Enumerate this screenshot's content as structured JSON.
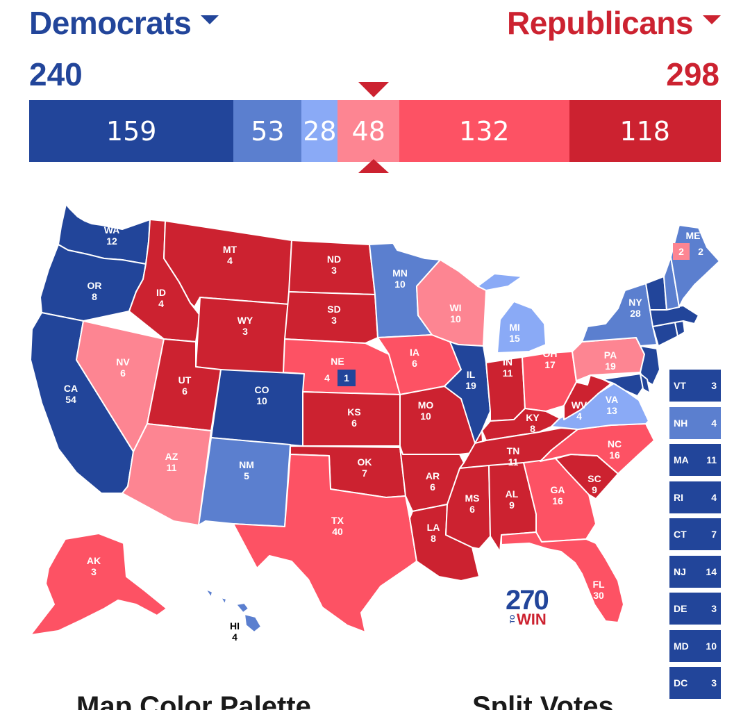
{
  "header": {
    "dem_name": "Democrats",
    "rep_name": "Republicans",
    "dem_total": "240",
    "rep_total": "298"
  },
  "ev_bar": [
    {
      "label": "159",
      "value": 159,
      "color": "#22459a"
    },
    {
      "label": "53",
      "value": 53,
      "color": "#5b7fcf"
    },
    {
      "label": "28",
      "value": 28,
      "color": "#8aaaf6"
    },
    {
      "label": "48",
      "value": 48,
      "color": "#fd8592"
    },
    {
      "label": "132",
      "value": 132,
      "color": "#fd5264"
    },
    {
      "label": "118",
      "value": 118,
      "color": "#cc2230"
    }
  ],
  "colors": {
    "safe_dem": "#22459a",
    "likely_dem": "#5b7fcf",
    "lean_dem": "#8aaaf6",
    "tilt_rep": "#fd8592",
    "likely_rep": "#fd5264",
    "safe_rep": "#cc2230"
  },
  "states": {
    "WA": {
      "abbr": "WA",
      "ev": "12",
      "rating": "safe_dem"
    },
    "OR": {
      "abbr": "OR",
      "ev": "8",
      "rating": "safe_dem"
    },
    "CA": {
      "abbr": "CA",
      "ev": "54",
      "rating": "safe_dem"
    },
    "NV": {
      "abbr": "NV",
      "ev": "6",
      "rating": "tilt_rep"
    },
    "ID": {
      "abbr": "ID",
      "ev": "4",
      "rating": "safe_rep"
    },
    "MT": {
      "abbr": "MT",
      "ev": "4",
      "rating": "safe_rep"
    },
    "WY": {
      "abbr": "WY",
      "ev": "3",
      "rating": "safe_rep"
    },
    "UT": {
      "abbr": "UT",
      "ev": "6",
      "rating": "safe_rep"
    },
    "AZ": {
      "abbr": "AZ",
      "ev": "11",
      "rating": "tilt_rep"
    },
    "CO": {
      "abbr": "CO",
      "ev": "10",
      "rating": "safe_dem"
    },
    "NM": {
      "abbr": "NM",
      "ev": "5",
      "rating": "likely_dem"
    },
    "ND": {
      "abbr": "ND",
      "ev": "3",
      "rating": "safe_rep"
    },
    "SD": {
      "abbr": "SD",
      "ev": "3",
      "rating": "safe_rep"
    },
    "NE": {
      "abbr": "NE",
      "ev": "4",
      "rating": "likely_rep",
      "district_ev": "1"
    },
    "KS": {
      "abbr": "KS",
      "ev": "6",
      "rating": "safe_rep"
    },
    "OK": {
      "abbr": "OK",
      "ev": "7",
      "rating": "safe_rep"
    },
    "TX": {
      "abbr": "TX",
      "ev": "40",
      "rating": "likely_rep"
    },
    "MN": {
      "abbr": "MN",
      "ev": "10",
      "rating": "likely_dem"
    },
    "IA": {
      "abbr": "IA",
      "ev": "6",
      "rating": "likely_rep"
    },
    "MO": {
      "abbr": "MO",
      "ev": "10",
      "rating": "safe_rep"
    },
    "AR": {
      "abbr": "AR",
      "ev": "6",
      "rating": "safe_rep"
    },
    "LA": {
      "abbr": "LA",
      "ev": "8",
      "rating": "safe_rep"
    },
    "WI": {
      "abbr": "WI",
      "ev": "10",
      "rating": "tilt_rep"
    },
    "IL": {
      "abbr": "IL",
      "ev": "19",
      "rating": "safe_dem"
    },
    "MI": {
      "abbr": "MI",
      "ev": "15",
      "rating": "lean_dem"
    },
    "IN": {
      "abbr": "IN",
      "ev": "11",
      "rating": "safe_rep"
    },
    "OH": {
      "abbr": "OH",
      "ev": "17",
      "rating": "likely_rep"
    },
    "KY": {
      "abbr": "KY",
      "ev": "8",
      "rating": "safe_rep"
    },
    "TN": {
      "abbr": "TN",
      "ev": "11",
      "rating": "safe_rep"
    },
    "MS": {
      "abbr": "MS",
      "ev": "6",
      "rating": "safe_rep"
    },
    "AL": {
      "abbr": "AL",
      "ev": "9",
      "rating": "safe_rep"
    },
    "GA": {
      "abbr": "GA",
      "ev": "16",
      "rating": "likely_rep"
    },
    "FL": {
      "abbr": "FL",
      "ev": "30",
      "rating": "likely_rep"
    },
    "SC": {
      "abbr": "SC",
      "ev": "9",
      "rating": "safe_rep"
    },
    "NC": {
      "abbr": "NC",
      "ev": "16",
      "rating": "likely_rep"
    },
    "VA": {
      "abbr": "VA",
      "ev": "13",
      "rating": "lean_dem"
    },
    "WV": {
      "abbr": "WV",
      "ev": "4",
      "rating": "safe_rep"
    },
    "PA": {
      "abbr": "PA",
      "ev": "19",
      "rating": "tilt_rep"
    },
    "NY": {
      "abbr": "NY",
      "ev": "28",
      "rating": "likely_dem"
    },
    "ME": {
      "abbr": "ME",
      "ev": "2",
      "rating": "likely_dem",
      "district_ev": "2"
    },
    "AK": {
      "abbr": "AK",
      "ev": "3",
      "rating": "likely_rep"
    },
    "HI": {
      "abbr": "HI",
      "ev": "4",
      "rating": "likely_dem"
    }
  },
  "small_states": [
    {
      "abbr": "VT",
      "ev": "3",
      "rating": "safe_dem"
    },
    {
      "abbr": "NH",
      "ev": "4",
      "rating": "likely_dem"
    },
    {
      "abbr": "MA",
      "ev": "11",
      "rating": "safe_dem"
    },
    {
      "abbr": "RI",
      "ev": "4",
      "rating": "safe_dem"
    },
    {
      "abbr": "CT",
      "ev": "7",
      "rating": "safe_dem"
    },
    {
      "abbr": "NJ",
      "ev": "14",
      "rating": "safe_dem"
    },
    {
      "abbr": "DE",
      "ev": "3",
      "rating": "safe_dem"
    },
    {
      "abbr": "MD",
      "ev": "10",
      "rating": "safe_dem"
    },
    {
      "abbr": "DC",
      "ev": "3",
      "rating": "safe_dem"
    }
  ],
  "logo": {
    "number": "270",
    "to": "TO",
    "win": "WIN"
  },
  "sections": {
    "palette_title": "Map Color Palette",
    "split_title": "Split Votes"
  }
}
